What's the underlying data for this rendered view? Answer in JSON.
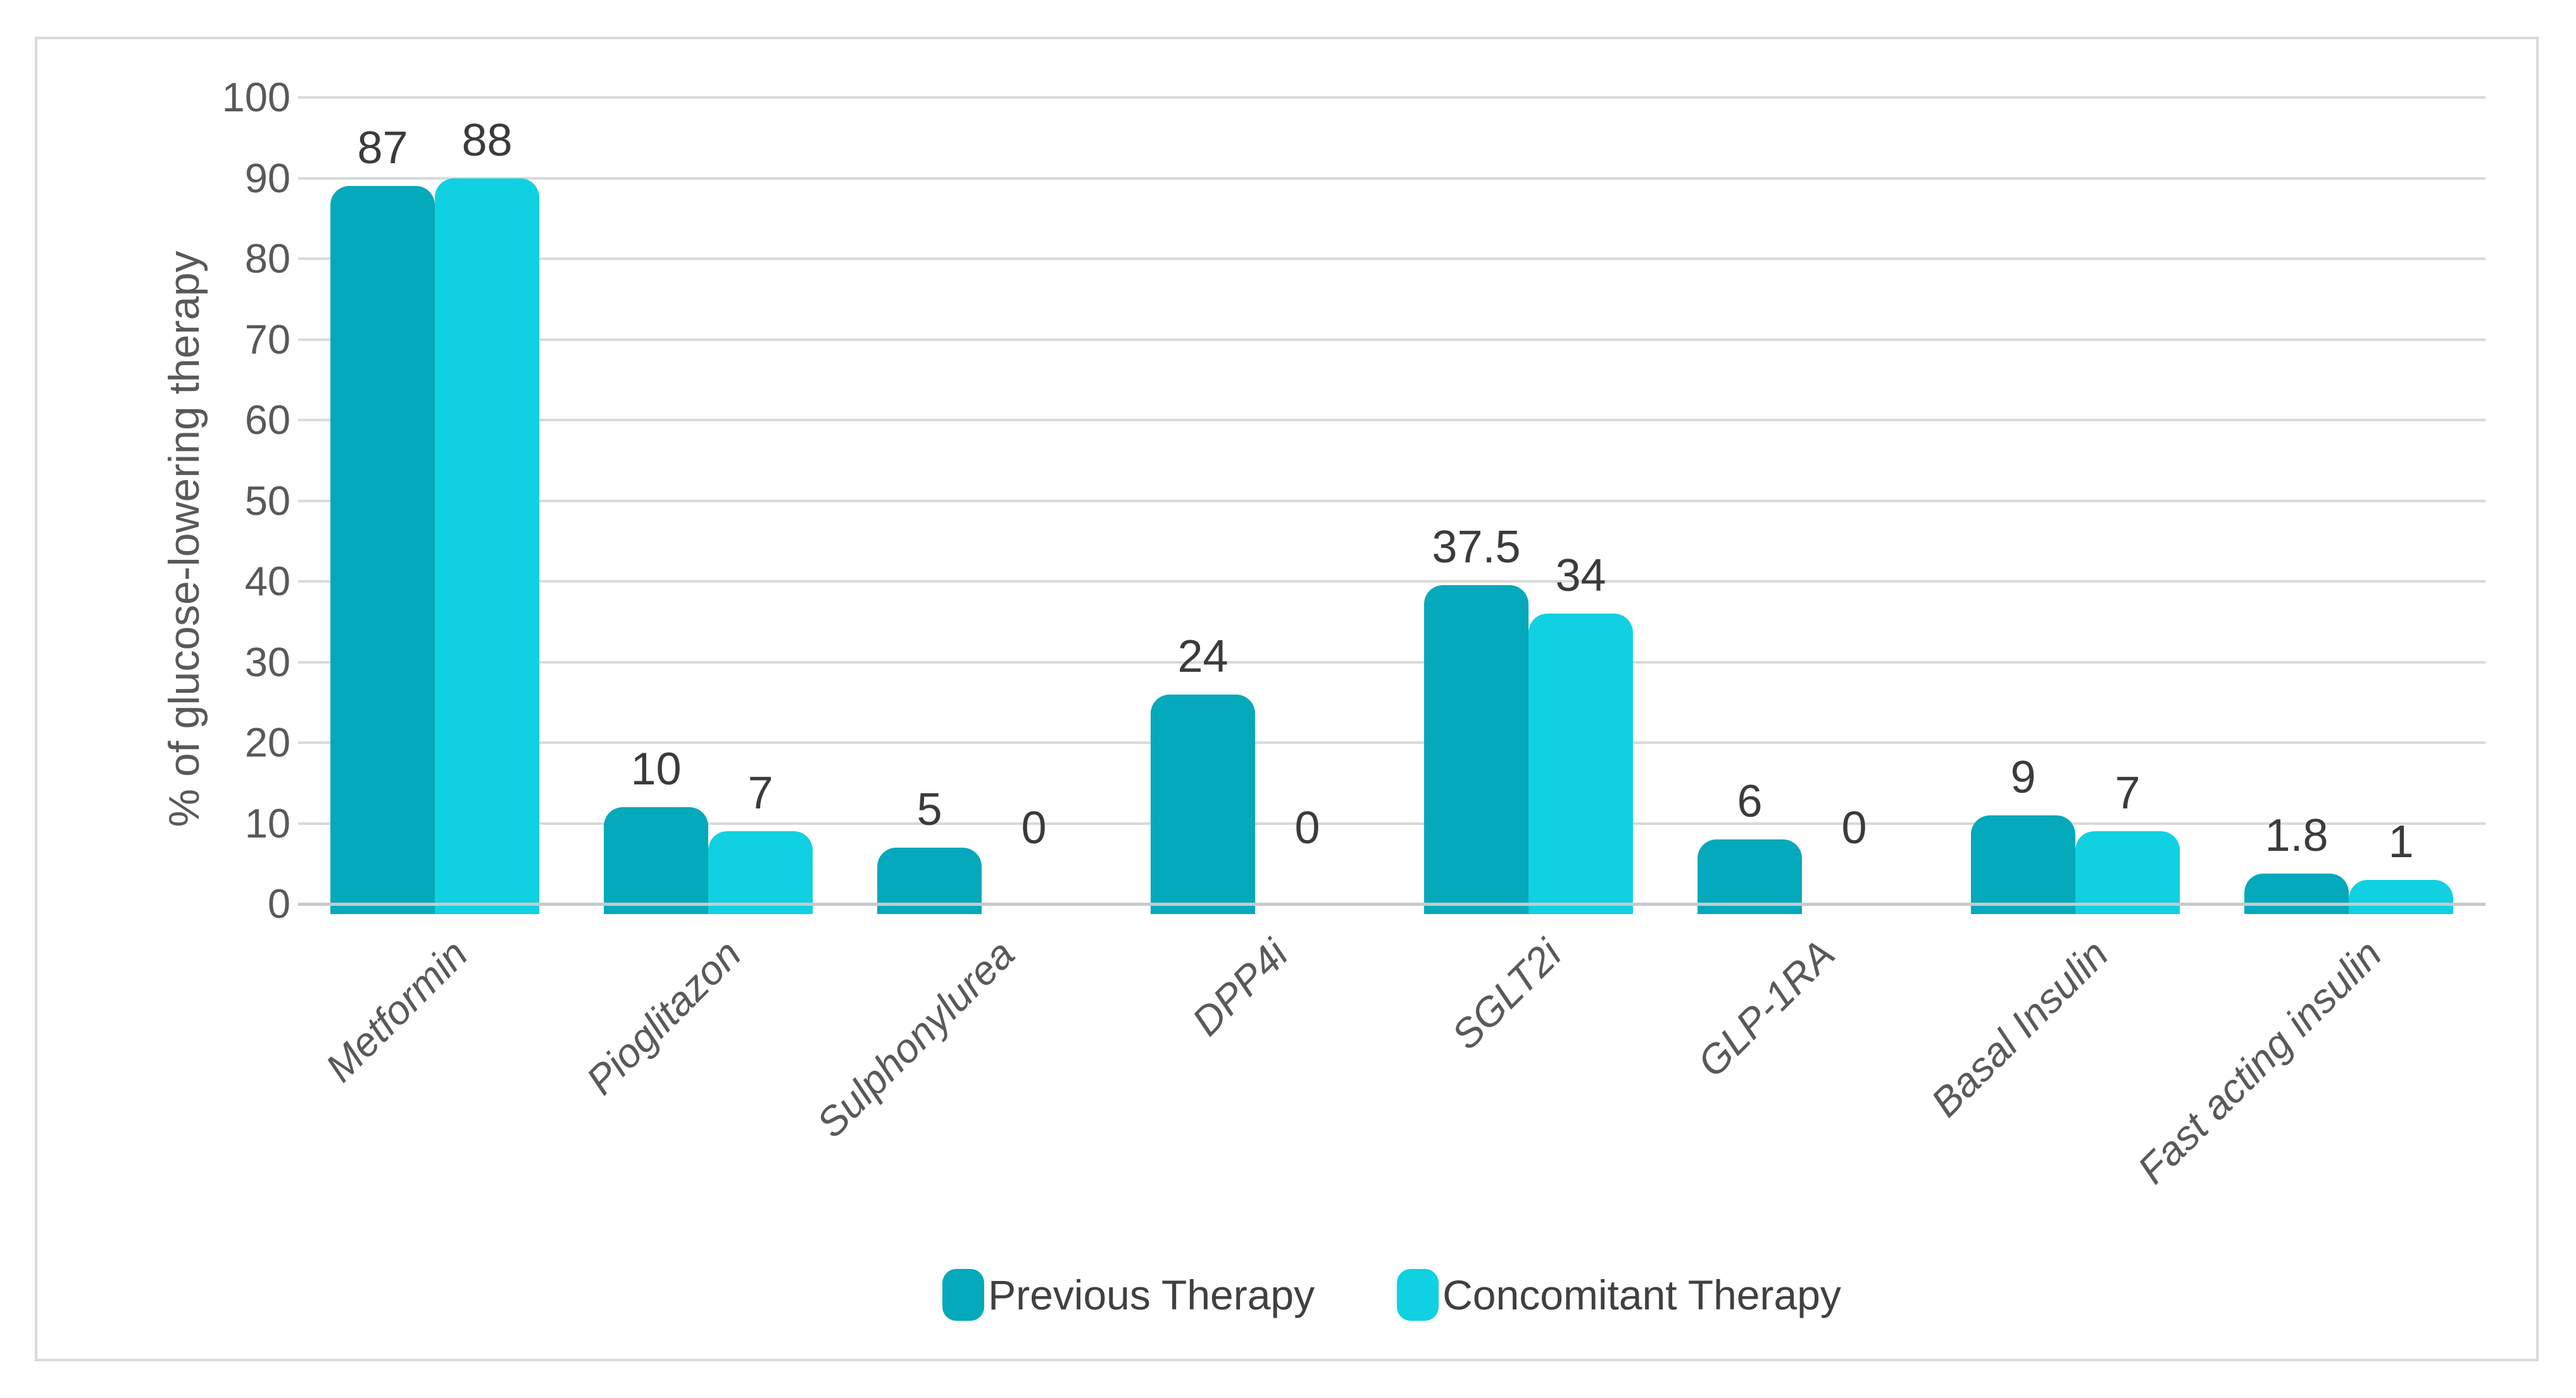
{
  "chart_data": {
    "type": "bar",
    "title": "",
    "ylabel": "% of glucose-lowering therapy",
    "xlabel": "",
    "categories": [
      "Metformin",
      "Pioglitazon",
      "Sulphonylurea",
      "DPP4i",
      "SGLT2i",
      "GLP-1RA",
      "Basal Insulin",
      "Fast acting insulin"
    ],
    "series": [
      {
        "name": "Previous Therapy",
        "color": "#04a9bb",
        "values": [
          87,
          10,
          5,
          24,
          37.5,
          6,
          9,
          1.8
        ]
      },
      {
        "name": "Concomitant Therapy",
        "color": "#10d1e2",
        "values": [
          88,
          7,
          0,
          0,
          34,
          0,
          7,
          1
        ]
      }
    ],
    "ylim": [
      0,
      100
    ],
    "yticks": [
      0,
      10,
      20,
      30,
      40,
      50,
      60,
      70,
      80,
      90,
      100
    ],
    "grid": true,
    "legend_position": "bottom",
    "colors": {
      "gridline": "#d9d9d9",
      "baseline": "#c9c9c9",
      "axis_text": "#595959",
      "data_label": "#3b3b3b",
      "legend_text": "#404040",
      "frame_border": "#d9d9d9",
      "background": "#ffffff"
    }
  }
}
